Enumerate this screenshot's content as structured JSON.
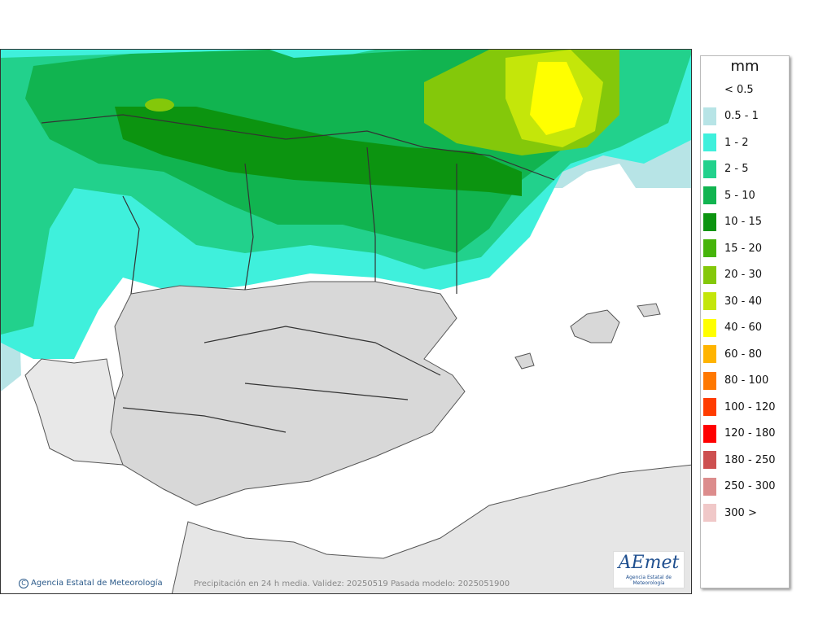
{
  "legend": {
    "unit": "mm",
    "items": [
      {
        "label": "< 0.5",
        "color": "#ffffff"
      },
      {
        "label": "0.5 - 1",
        "color": "#b7e4e6"
      },
      {
        "label": "1 - 2",
        "color": "#3ff0dc"
      },
      {
        "label": "2 - 5",
        "color": "#22d18c"
      },
      {
        "label": "5 - 10",
        "color": "#11b450"
      },
      {
        "label": "10 - 15",
        "color": "#0c9410"
      },
      {
        "label": "15 - 20",
        "color": "#46b40a"
      },
      {
        "label": "20 - 30",
        "color": "#84c80a"
      },
      {
        "label": "30 - 40",
        "color": "#c4e60a"
      },
      {
        "label": "40 - 60",
        "color": "#ffff00"
      },
      {
        "label": "60 - 80",
        "color": "#ffb400"
      },
      {
        "label": "80 - 100",
        "color": "#ff7800"
      },
      {
        "label": "100 - 120",
        "color": "#ff3c00"
      },
      {
        "label": "120 - 180",
        "color": "#ff0000"
      },
      {
        "label": "180 - 250",
        "color": "#cd5050"
      },
      {
        "label": "250 - 300",
        "color": "#dc8c8c"
      },
      {
        "label": "300 >",
        "color": "#f0c8c8"
      }
    ]
  },
  "footer": {
    "credit": "Agencia Estatal de Meteorología",
    "caption": "Precipitación en 24 h media. Validez: 20250519 Pasada modelo: 2025051900"
  },
  "logo": {
    "text": "AEmet",
    "subtext": "Agencia Estatal de Meteorología"
  }
}
